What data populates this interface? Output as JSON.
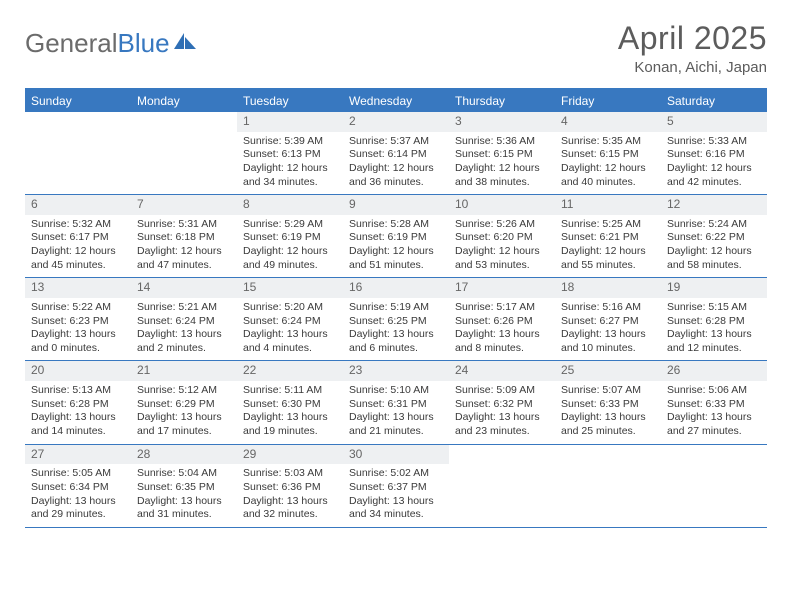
{
  "brand": {
    "part1": "General",
    "part2": "Blue"
  },
  "title": "April 2025",
  "location": "Konan, Aichi, Japan",
  "colors": {
    "header_blue": "#3878c0",
    "daynum_bg": "#eef0f2",
    "text_gray": "#5c5c5c",
    "body_text": "#3a3a3a"
  },
  "day_names": [
    "Sunday",
    "Monday",
    "Tuesday",
    "Wednesday",
    "Thursday",
    "Friday",
    "Saturday"
  ],
  "weeks": [
    [
      null,
      null,
      {
        "n": "1",
        "rise": "5:39 AM",
        "set": "6:13 PM",
        "dlh": "12",
        "dlm": "34"
      },
      {
        "n": "2",
        "rise": "5:37 AM",
        "set": "6:14 PM",
        "dlh": "12",
        "dlm": "36"
      },
      {
        "n": "3",
        "rise": "5:36 AM",
        "set": "6:15 PM",
        "dlh": "12",
        "dlm": "38"
      },
      {
        "n": "4",
        "rise": "5:35 AM",
        "set": "6:15 PM",
        "dlh": "12",
        "dlm": "40"
      },
      {
        "n": "5",
        "rise": "5:33 AM",
        "set": "6:16 PM",
        "dlh": "12",
        "dlm": "42"
      }
    ],
    [
      {
        "n": "6",
        "rise": "5:32 AM",
        "set": "6:17 PM",
        "dlh": "12",
        "dlm": "45"
      },
      {
        "n": "7",
        "rise": "5:31 AM",
        "set": "6:18 PM",
        "dlh": "12",
        "dlm": "47"
      },
      {
        "n": "8",
        "rise": "5:29 AM",
        "set": "6:19 PM",
        "dlh": "12",
        "dlm": "49"
      },
      {
        "n": "9",
        "rise": "5:28 AM",
        "set": "6:19 PM",
        "dlh": "12",
        "dlm": "51"
      },
      {
        "n": "10",
        "rise": "5:26 AM",
        "set": "6:20 PM",
        "dlh": "12",
        "dlm": "53"
      },
      {
        "n": "11",
        "rise": "5:25 AM",
        "set": "6:21 PM",
        "dlh": "12",
        "dlm": "55"
      },
      {
        "n": "12",
        "rise": "5:24 AM",
        "set": "6:22 PM",
        "dlh": "12",
        "dlm": "58"
      }
    ],
    [
      {
        "n": "13",
        "rise": "5:22 AM",
        "set": "6:23 PM",
        "dlh": "13",
        "dlm": "0"
      },
      {
        "n": "14",
        "rise": "5:21 AM",
        "set": "6:24 PM",
        "dlh": "13",
        "dlm": "2"
      },
      {
        "n": "15",
        "rise": "5:20 AM",
        "set": "6:24 PM",
        "dlh": "13",
        "dlm": "4"
      },
      {
        "n": "16",
        "rise": "5:19 AM",
        "set": "6:25 PM",
        "dlh": "13",
        "dlm": "6"
      },
      {
        "n": "17",
        "rise": "5:17 AM",
        "set": "6:26 PM",
        "dlh": "13",
        "dlm": "8"
      },
      {
        "n": "18",
        "rise": "5:16 AM",
        "set": "6:27 PM",
        "dlh": "13",
        "dlm": "10"
      },
      {
        "n": "19",
        "rise": "5:15 AM",
        "set": "6:28 PM",
        "dlh": "13",
        "dlm": "12"
      }
    ],
    [
      {
        "n": "20",
        "rise": "5:13 AM",
        "set": "6:28 PM",
        "dlh": "13",
        "dlm": "14"
      },
      {
        "n": "21",
        "rise": "5:12 AM",
        "set": "6:29 PM",
        "dlh": "13",
        "dlm": "17"
      },
      {
        "n": "22",
        "rise": "5:11 AM",
        "set": "6:30 PM",
        "dlh": "13",
        "dlm": "19"
      },
      {
        "n": "23",
        "rise": "5:10 AM",
        "set": "6:31 PM",
        "dlh": "13",
        "dlm": "21"
      },
      {
        "n": "24",
        "rise": "5:09 AM",
        "set": "6:32 PM",
        "dlh": "13",
        "dlm": "23"
      },
      {
        "n": "25",
        "rise": "5:07 AM",
        "set": "6:33 PM",
        "dlh": "13",
        "dlm": "25"
      },
      {
        "n": "26",
        "rise": "5:06 AM",
        "set": "6:33 PM",
        "dlh": "13",
        "dlm": "27"
      }
    ],
    [
      {
        "n": "27",
        "rise": "5:05 AM",
        "set": "6:34 PM",
        "dlh": "13",
        "dlm": "29"
      },
      {
        "n": "28",
        "rise": "5:04 AM",
        "set": "6:35 PM",
        "dlh": "13",
        "dlm": "31"
      },
      {
        "n": "29",
        "rise": "5:03 AM",
        "set": "6:36 PM",
        "dlh": "13",
        "dlm": "32"
      },
      {
        "n": "30",
        "rise": "5:02 AM",
        "set": "6:37 PM",
        "dlh": "13",
        "dlm": "34"
      },
      null,
      null,
      null
    ]
  ],
  "labels": {
    "sunrise": "Sunrise:",
    "sunset": "Sunset:",
    "daylight": "Daylight:",
    "hours": "hours",
    "and": "and",
    "minutes": "minutes."
  }
}
